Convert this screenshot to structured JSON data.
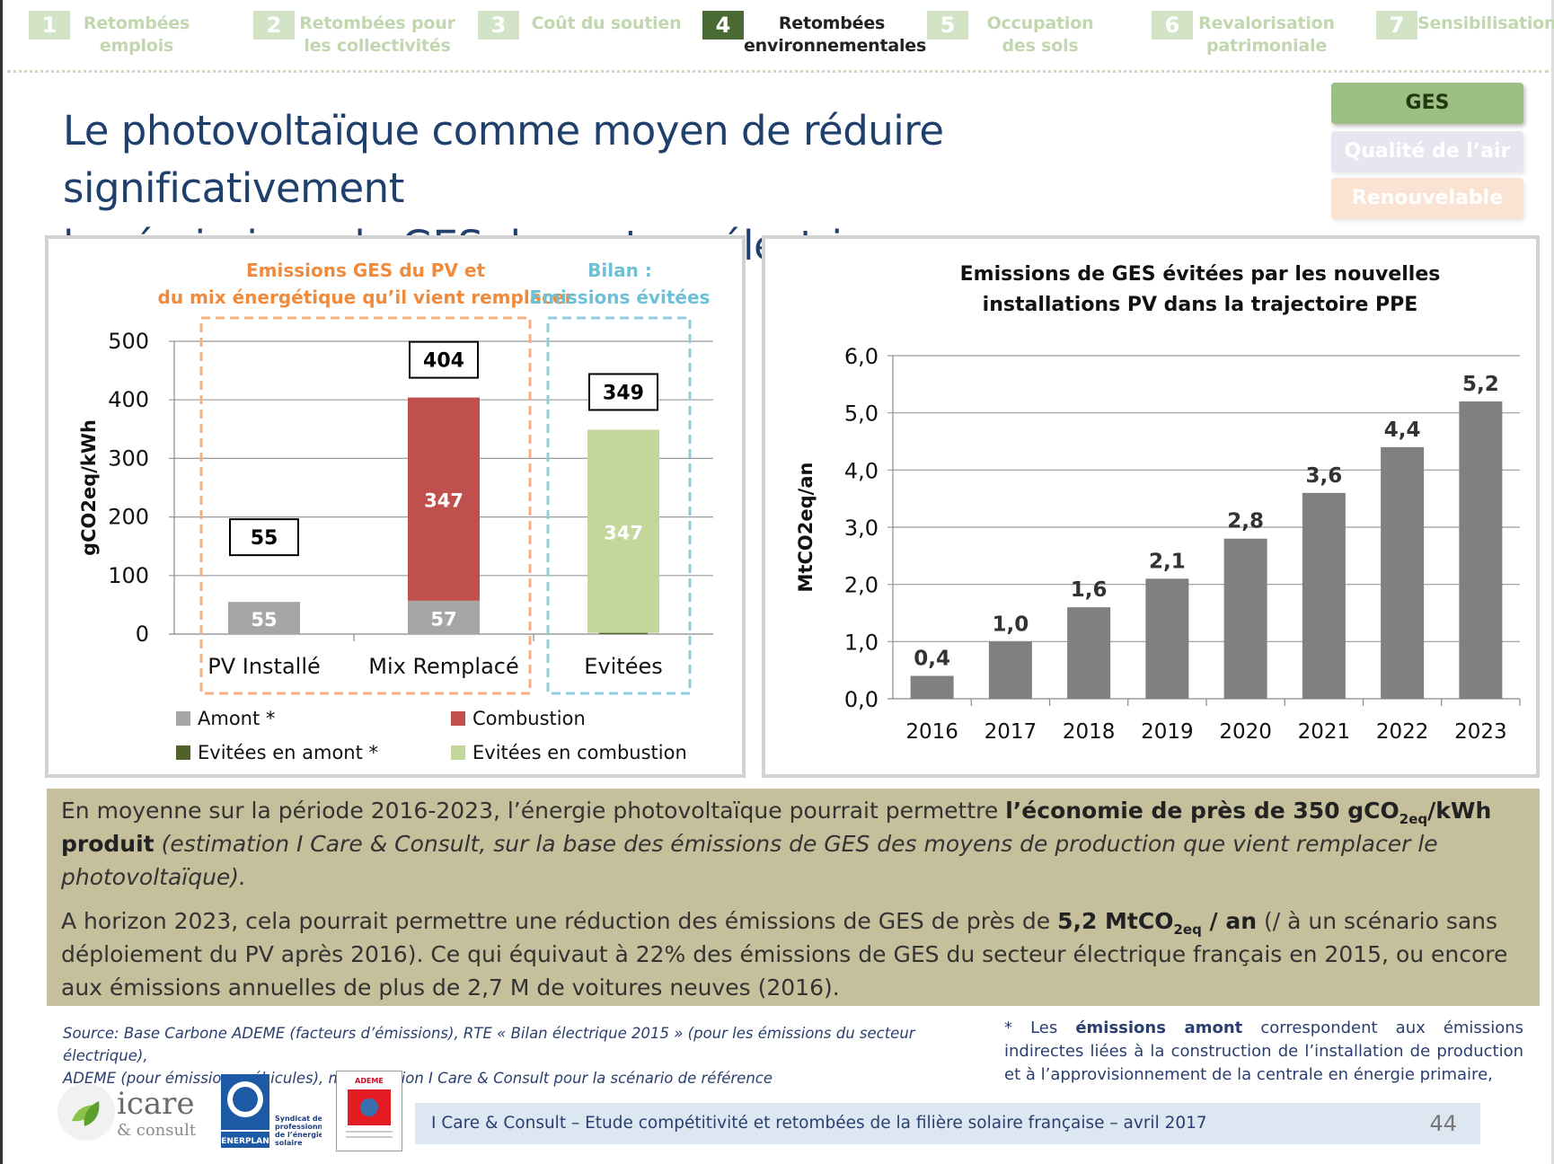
{
  "nav": {
    "items": [
      {
        "num": "1",
        "label": "Retombées emplois",
        "active": false
      },
      {
        "num": "2",
        "label": "Retombées pour les collectivités",
        "active": false
      },
      {
        "num": "3",
        "label": "Coût du soutien",
        "active": false
      },
      {
        "num": "4",
        "label": "Retombées environnementales",
        "active": true
      },
      {
        "num": "5",
        "label": "Occupation des sols",
        "active": false
      },
      {
        "num": "6",
        "label": "Revalorisation patrimoniale",
        "active": false
      },
      {
        "num": "7",
        "label": "Sensibilisation",
        "active": false
      }
    ]
  },
  "title": {
    "line1": "Le photovoltaïque comme moyen de réduire significativement",
    "line2": "les émissions de GES du secteur électrique"
  },
  "tags": {
    "ges": "GES",
    "air": "Qualité de l’air",
    "ren": "Renouvelable"
  },
  "chart_data": [
    {
      "type": "bar",
      "stacked": true,
      "categories": [
        "PV Installé",
        "Mix Remplacé",
        "Evitées"
      ],
      "series": [
        {
          "name": "Amont *",
          "color": "#a6a6a6",
          "values": [
            55,
            57,
            0
          ]
        },
        {
          "name": "Combustion",
          "color": "#c0504d",
          "values": [
            0,
            347,
            0
          ]
        },
        {
          "name": "Evitées en amont *",
          "color": "#4f6228",
          "values": [
            0,
            0,
            2
          ]
        },
        {
          "name": "Evitées en combustion",
          "color": "#c3d69b",
          "values": [
            0,
            0,
            347
          ]
        }
      ],
      "totals": [
        55,
        404,
        349
      ],
      "ylabel": "gCO2eq/kWh",
      "ylim": [
        0,
        500
      ],
      "yticks": [
        0,
        100,
        200,
        300,
        400,
        500
      ],
      "grid": true,
      "legend_position": "bottom",
      "groups": [
        {
          "label": "Emissions GES du PV et du mix énergétique qu’il vient remplacer",
          "color": "#f4b183",
          "text_color": "#f08a3c",
          "categories": [
            "PV Installé",
            "Mix Remplacé"
          ]
        },
        {
          "label": "Bilan : Emissions évitées",
          "color": "#92cddc",
          "text_color": "#6ec0d6",
          "categories": [
            "Evitées"
          ]
        }
      ]
    },
    {
      "type": "bar",
      "title": "Emissions de GES évitées par les nouvelles installations PV dans la trajectoire PPE",
      "categories": [
        "2016",
        "2017",
        "2018",
        "2019",
        "2020",
        "2021",
        "2022",
        "2023"
      ],
      "values": [
        0.4,
        1.0,
        1.6,
        2.1,
        2.8,
        3.6,
        4.4,
        5.2
      ],
      "value_labels": [
        "0,4",
        "1,0",
        "1,6",
        "2,1",
        "2,8",
        "3,6",
        "4,4",
        "5,2"
      ],
      "bar_color": "#808080",
      "ylabel": "MtCO2eq/an",
      "ylim": [
        0,
        6
      ],
      "yticks": [
        "0,0",
        "1,0",
        "2,0",
        "3,0",
        "4,0",
        "5,0",
        "6,0"
      ],
      "grid": true
    }
  ],
  "summary": {
    "p1_a": "En moyenne sur la période 2016-2023, l’énergie photovoltaïque pourrait permettre ",
    "p1_b": "l’économie de près de 350 gCO",
    "p1_sub": "2eq",
    "p1_c": "/kWh produit",
    "p1_d": " (estimation I Care & Consult, sur la base des émissions de GES des moyens de production que vient remplacer le photovoltaïque).",
    "p2_a": "A horizon 2023, cela pourrait permettre une réduction des émissions de GES de près de ",
    "p2_b": "5,2 MtCO",
    "p2_sub": "2eq",
    "p2_c": " / an",
    "p2_d": " (/ à un scénario sans déploiement du PV après 2016). Ce qui équivaut à 22% des émissions de GES du secteur électrique français en 2015, ou encore aux émissions annuelles de plus de 2,7 M de voitures neuves (2016)."
  },
  "source": {
    "line1": "Source: Base Carbone ADEME (facteurs d’émissions), RTE « Bilan électrique 2015 » (pour les émissions du secteur électrique),",
    "line2": "ADEME (pour émissions véhicules), modélisation I Care & Consult pour la scénario de référence"
  },
  "footnote": {
    "a": "* Les ",
    "b": "émissions amont",
    "c": " correspondent aux émissions indirectes liées à la construction de l’installation de production et à l’approvisionnement de la centrale en énergie primaire,"
  },
  "logos": {
    "icare_main": "icare",
    "icare_sub": "& consult",
    "enerplan_name": "ENERPLAN",
    "enerplan_text": [
      "Syndicat des",
      "professionnels",
      "de l’énergie",
      "solaire"
    ],
    "ademe": "ADEME"
  },
  "footer": {
    "text": "I Care  & Consult – Etude compétitivité et retombées de la filière solaire française – avril 2017",
    "page": "44"
  }
}
